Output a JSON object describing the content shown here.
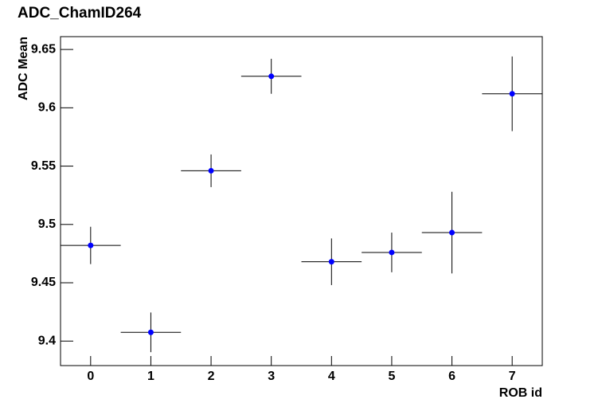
{
  "chart_data": {
    "type": "errorbar",
    "title": "ADC_ChamID264",
    "xlabel": "ROB id",
    "ylabel": "ADC Mean",
    "x": [
      0,
      1,
      2,
      3,
      4,
      5,
      6,
      7
    ],
    "values": [
      9.482,
      9.4075,
      9.546,
      9.627,
      9.468,
      9.476,
      9.493,
      9.612
    ],
    "errors": [
      0.016,
      0.017,
      0.014,
      0.015,
      0.02,
      0.017,
      0.035,
      0.032
    ],
    "xerr": 0.5,
    "color": "#0000ff",
    "xlim": [
      -0.5,
      7.5
    ],
    "xticks": [
      0,
      1,
      2,
      3,
      4,
      5,
      6,
      7
    ],
    "ylim": [
      9.379,
      9.661
    ],
    "yticks": [
      9.4,
      9.45,
      9.5,
      9.55,
      9.6,
      9.65
    ]
  }
}
